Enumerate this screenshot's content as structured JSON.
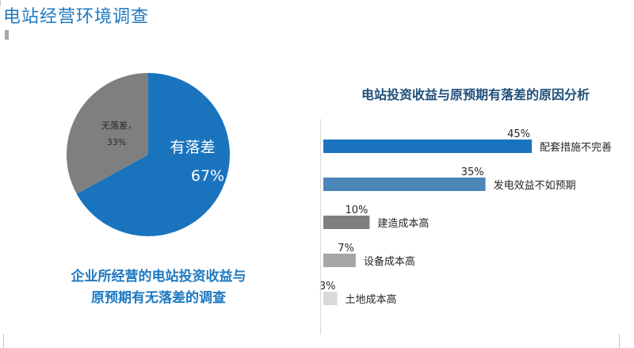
{
  "page": {
    "title": "电站经营环境调查"
  },
  "colors": {
    "title_blue": "#1e79c2",
    "pie_yes": "#1a73bd",
    "pie_no": "#7f7f7f",
    "bar_colors": [
      "#1a73bd",
      "#4d86b8",
      "#7f7f7f",
      "#a6a6a6",
      "#d9d9d9"
    ]
  },
  "chart_data": [
    {
      "type": "pie",
      "slices": [
        {
          "label": "有落差",
          "value": 67,
          "value_label": "67%",
          "color": "#1a73bd"
        },
        {
          "label": "无落差，",
          "value": 33,
          "value_label": "33%",
          "color": "#7f7f7f"
        }
      ],
      "caption_lines": [
        "企业所经营的电站投资收益与",
        "原预期有无落差的调查"
      ]
    },
    {
      "type": "bar",
      "orientation": "horizontal",
      "title": "电站投资收益与原预期有落差的原因分析",
      "categories": [
        "配套措施不完善",
        "发电效益不如预期",
        "建造成本高",
        "设备成本高",
        "土地成本高"
      ],
      "values": [
        45,
        35,
        10,
        7,
        3
      ],
      "value_labels": [
        "45%",
        "35%",
        "10%",
        "7%",
        "3%"
      ],
      "xlim": [
        0,
        45
      ],
      "grid": false
    }
  ]
}
